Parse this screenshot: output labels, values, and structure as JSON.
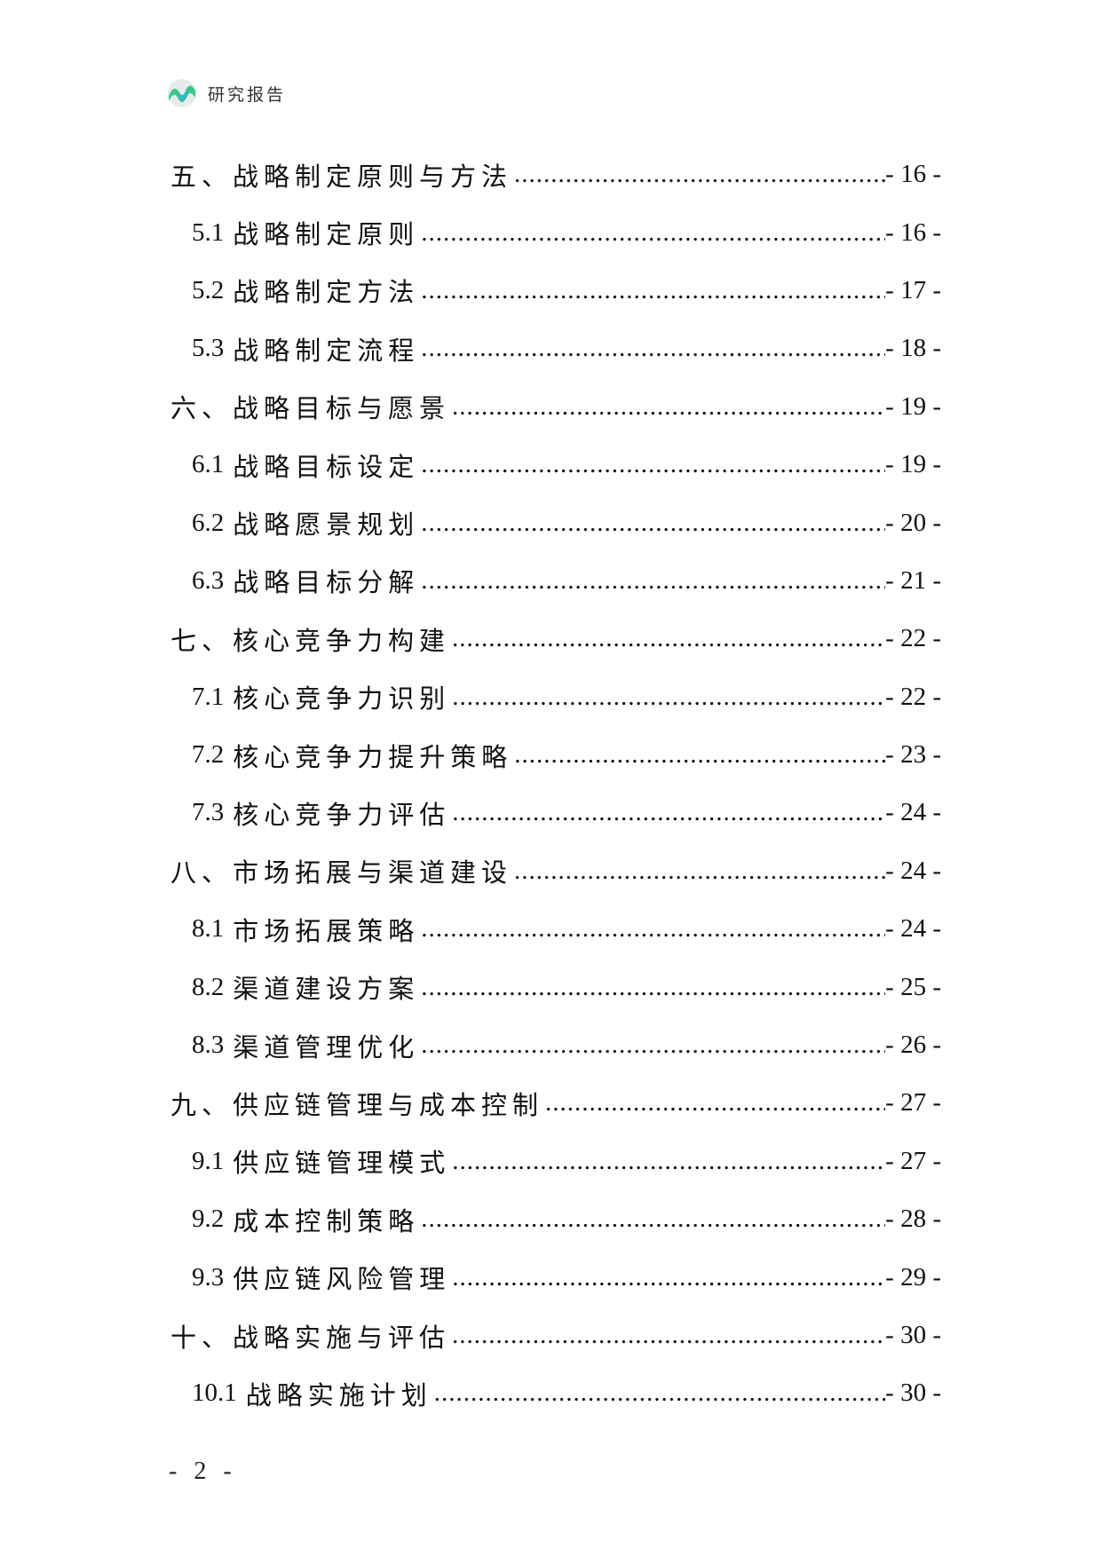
{
  "header": {
    "title": "研究报告",
    "logo_colors": [
      "#3cc88c",
      "#2fb9c9"
    ]
  },
  "toc": [
    {
      "level": 1,
      "number": "五、",
      "title": "战略制定原则与方法",
      "page": "- 16 -"
    },
    {
      "level": 2,
      "number": "5.1",
      "title": "战略制定原则",
      "page": "- 16 -"
    },
    {
      "level": 2,
      "number": "5.2",
      "title": "战略制定方法",
      "page": "- 17 -"
    },
    {
      "level": 2,
      "number": "5.3",
      "title": "战略制定流程",
      "page": "- 18 -"
    },
    {
      "level": 1,
      "number": "六、",
      "title": "战略目标与愿景",
      "page": "- 19 -"
    },
    {
      "level": 2,
      "number": "6.1",
      "title": "战略目标设定",
      "page": "- 19 -"
    },
    {
      "level": 2,
      "number": "6.2",
      "title": "战略愿景规划",
      "page": "- 20 -"
    },
    {
      "level": 2,
      "number": "6.3",
      "title": "战略目标分解",
      "page": "- 21 -"
    },
    {
      "level": 1,
      "number": "七、",
      "title": "核心竞争力构建",
      "page": "- 22 -"
    },
    {
      "level": 2,
      "number": "7.1",
      "title": "核心竞争力识别",
      "page": "- 22 -"
    },
    {
      "level": 2,
      "number": "7.2",
      "title": "核心竞争力提升策略",
      "page": "- 23 -"
    },
    {
      "level": 2,
      "number": "7.3",
      "title": "核心竞争力评估",
      "page": "- 24 -"
    },
    {
      "level": 1,
      "number": "八、",
      "title": "市场拓展与渠道建设",
      "page": "- 24 -"
    },
    {
      "level": 2,
      "number": "8.1",
      "title": "市场拓展策略",
      "page": "- 24 -"
    },
    {
      "level": 2,
      "number": "8.2",
      "title": "渠道建设方案",
      "page": "- 25 -"
    },
    {
      "level": 2,
      "number": "8.3",
      "title": "渠道管理优化",
      "page": "- 26 -"
    },
    {
      "level": 1,
      "number": "九、",
      "title": "供应链管理与成本控制",
      "page": "- 27 -"
    },
    {
      "level": 2,
      "number": "9.1",
      "title": "供应链管理模式",
      "page": "- 27 -"
    },
    {
      "level": 2,
      "number": "9.2",
      "title": "成本控制策略",
      "page": "- 28 -"
    },
    {
      "level": 2,
      "number": "9.3",
      "title": "供应链风险管理",
      "page": "- 29 -"
    },
    {
      "level": 1,
      "number": "十、",
      "title": "战略实施与评估",
      "page": "- 30 -"
    },
    {
      "level": 2,
      "number": "10.1",
      "title": "战略实施计划",
      "page": "- 30 -"
    }
  ],
  "footer": {
    "page_number": "- 2 -"
  }
}
